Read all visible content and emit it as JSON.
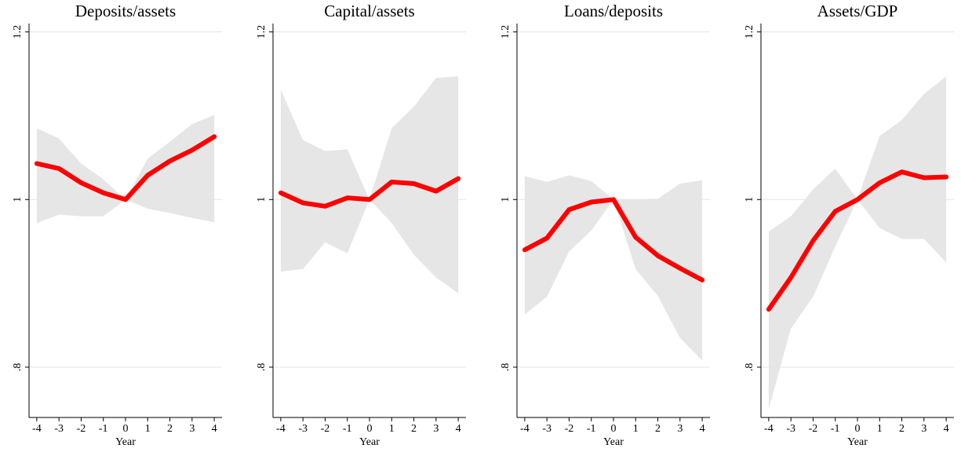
{
  "chart_data": [
    {
      "type": "line",
      "title": "Deposits/assets",
      "xlabel": "Year",
      "x": [
        -4,
        -3,
        -2,
        -1,
        0,
        1,
        2,
        3,
        4
      ],
      "xlim": [
        -4.35,
        4.35
      ],
      "xticks": [
        -4,
        -3,
        -2,
        -1,
        0,
        1,
        2,
        3,
        4
      ],
      "ylim": [
        0.74,
        1.21
      ],
      "yticks": [
        {
          "value": 0.8,
          "label": ".8"
        },
        1,
        1.2
      ],
      "grid": true,
      "series": [
        {
          "color": "#ff0000",
          "values": [
            1.043,
            1.037,
            1.02,
            1.008,
            1.0,
            1.029,
            1.046,
            1.059,
            1.075
          ]
        }
      ],
      "band": {
        "color": "#e6e6e6",
        "upper": [
          1.085,
          1.073,
          1.043,
          1.024,
          1.0,
          1.049,
          1.069,
          1.09,
          1.101
        ],
        "lower": [
          0.972,
          0.982,
          0.98,
          0.98,
          1.0,
          0.989,
          0.984,
          0.978,
          0.973
        ]
      }
    },
    {
      "type": "line",
      "title": "Capital/assets",
      "xlabel": "Year",
      "x": [
        -4,
        -3,
        -2,
        -1,
        0,
        1,
        2,
        3,
        4
      ],
      "xlim": [
        -4.35,
        4.35
      ],
      "xticks": [
        -4,
        -3,
        -2,
        -1,
        0,
        1,
        2,
        3,
        4
      ],
      "ylim": [
        0.74,
        1.21
      ],
      "yticks": [
        {
          "value": 0.8,
          "label": ".8"
        },
        1,
        1.2
      ],
      "grid": true,
      "series": [
        {
          "color": "#ff0000",
          "values": [
            1.008,
            0.996,
            0.992,
            1.002,
            1.0,
            1.021,
            1.019,
            1.01,
            1.025
          ]
        }
      ],
      "band": {
        "color": "#e6e6e6",
        "upper": [
          1.131,
          1.071,
          1.058,
          1.06,
          1.0,
          1.085,
          1.111,
          1.145,
          1.147
        ],
        "lower": [
          0.914,
          0.917,
          0.949,
          0.936,
          1.0,
          0.972,
          0.934,
          0.907,
          0.888
        ]
      }
    },
    {
      "type": "line",
      "title": "Loans/deposits",
      "xlabel": "Year",
      "x": [
        -4,
        -3,
        -2,
        -1,
        0,
        1,
        2,
        3,
        4
      ],
      "xlim": [
        -4.35,
        4.35
      ],
      "xticks": [
        -4,
        -3,
        -2,
        -1,
        0,
        1,
        2,
        3,
        4
      ],
      "ylim": [
        0.74,
        1.21
      ],
      "yticks": [
        {
          "value": 0.8,
          "label": ".8"
        },
        1,
        1.2
      ],
      "grid": true,
      "series": [
        {
          "color": "#ff0000",
          "values": [
            0.94,
            0.954,
            0.988,
            0.997,
            1.0,
            0.955,
            0.933,
            0.918,
            0.904
          ]
        }
      ],
      "band": {
        "color": "#e6e6e6",
        "upper": [
          1.028,
          1.021,
          1.029,
          1.022,
          1.0,
          1.0,
          1.001,
          1.019,
          1.023
        ],
        "lower": [
          0.863,
          0.884,
          0.938,
          0.963,
          1.0,
          0.917,
          0.885,
          0.835,
          0.808
        ]
      }
    },
    {
      "type": "line",
      "title": "Assets/GDP",
      "xlabel": "Year",
      "x": [
        -4,
        -3,
        -2,
        -1,
        0,
        1,
        2,
        3,
        4
      ],
      "xlim": [
        -4.35,
        4.35
      ],
      "xticks": [
        -4,
        -3,
        -2,
        -1,
        0,
        1,
        2,
        3,
        4
      ],
      "ylim": [
        0.74,
        1.21
      ],
      "yticks": [
        {
          "value": 0.8,
          "label": ".8"
        },
        1,
        1.2
      ],
      "grid": true,
      "series": [
        {
          "color": "#ff0000",
          "values": [
            0.869,
            0.907,
            0.951,
            0.986,
            1.0,
            1.02,
            1.033,
            1.026,
            1.027
          ]
        }
      ],
      "band": {
        "color": "#e6e6e6",
        "upper": [
          0.962,
          0.98,
          1.012,
          1.037,
          1.0,
          1.076,
          1.095,
          1.126,
          1.147
        ],
        "lower": [
          0.75,
          0.846,
          0.884,
          0.944,
          1.0,
          0.966,
          0.953,
          0.953,
          0.925
        ]
      }
    }
  ]
}
